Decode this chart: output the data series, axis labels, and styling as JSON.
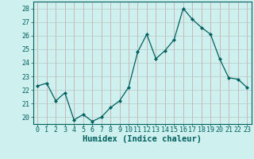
{
  "x": [
    0,
    1,
    2,
    3,
    4,
    5,
    6,
    7,
    8,
    9,
    10,
    11,
    12,
    13,
    14,
    15,
    16,
    17,
    18,
    19,
    20,
    21,
    22,
    23
  ],
  "y": [
    22.3,
    22.5,
    21.2,
    21.8,
    19.8,
    20.2,
    19.7,
    20.0,
    20.7,
    21.2,
    22.2,
    24.8,
    26.1,
    24.3,
    24.9,
    25.7,
    28.0,
    27.2,
    26.6,
    26.1,
    24.3,
    22.9,
    22.8,
    22.2
  ],
  "line_color": "#005f5f",
  "marker": "D",
  "marker_size": 2.2,
  "bg_color": "#cef0ee",
  "grid_color_v": "#c8a0a0",
  "grid_color_h": "#b8c8c8",
  "xlabel": "Humidex (Indice chaleur)",
  "ylabel_ticks": [
    20,
    21,
    22,
    23,
    24,
    25,
    26,
    27,
    28
  ],
  "xtick_labels": [
    "0",
    "1",
    "2",
    "3",
    "4",
    "5",
    "6",
    "7",
    "8",
    "9",
    "10",
    "11",
    "12",
    "13",
    "14",
    "15",
    "16",
    "17",
    "18",
    "19",
    "20",
    "21",
    "22",
    "23"
  ],
  "ylim": [
    19.5,
    28.5
  ],
  "xlim": [
    -0.5,
    23.5
  ],
  "tick_fontsize": 6.0,
  "xlabel_fontsize": 7.5
}
